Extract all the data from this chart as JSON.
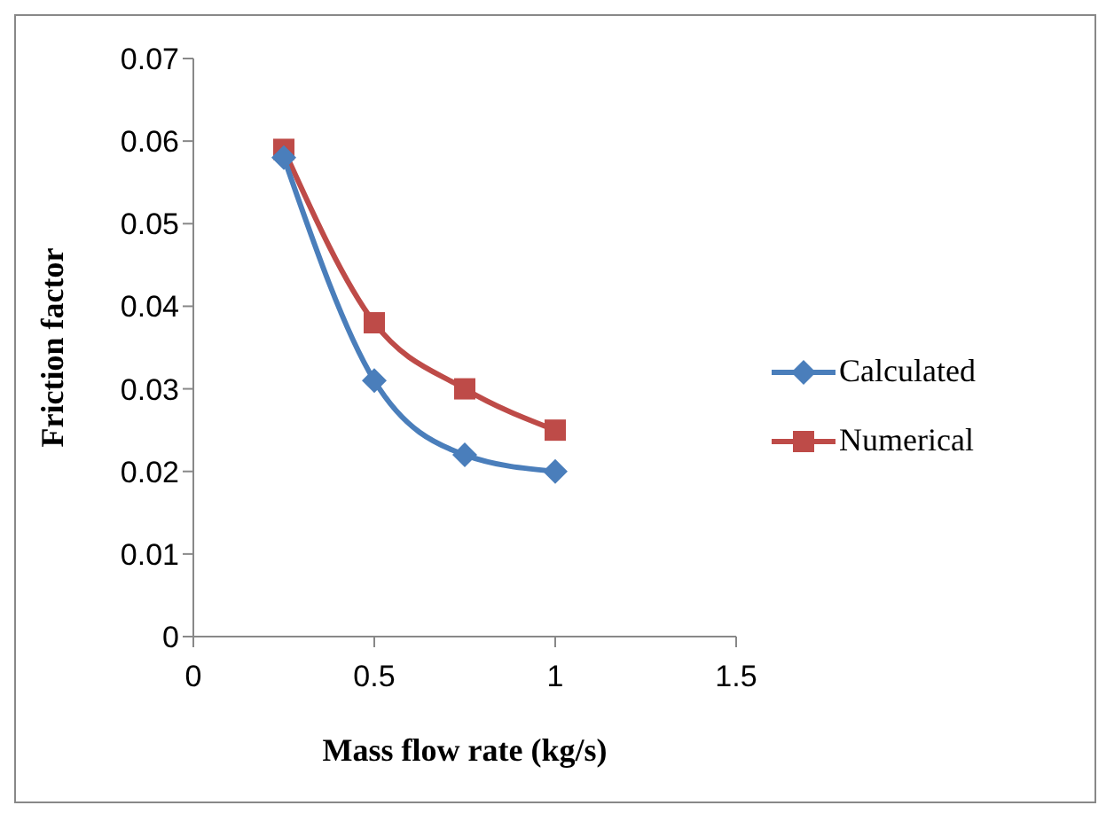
{
  "chart_data": {
    "type": "line",
    "xlabel": "Mass flow rate (kg/s)",
    "ylabel": "Friction factor",
    "xlim": [
      0,
      1.5
    ],
    "xticks": [
      0,
      0.5,
      1,
      1.5
    ],
    "ylim": [
      0,
      0.07
    ],
    "yticks": [
      0,
      0.01,
      0.02,
      0.03,
      0.04,
      0.05,
      0.06,
      0.07
    ],
    "grid": false,
    "legend": "right",
    "x": [
      0.25,
      0.5,
      0.75,
      1
    ],
    "series": [
      {
        "name": "Calculated",
        "color": "#4a7ebb",
        "marker": "diamond",
        "values": [
          0.058,
          0.031,
          0.022,
          0.02
        ]
      },
      {
        "name": "Numerical",
        "color": "#be4b48",
        "marker": "square",
        "values": [
          0.059,
          0.038,
          0.03,
          0.025
        ]
      }
    ]
  }
}
